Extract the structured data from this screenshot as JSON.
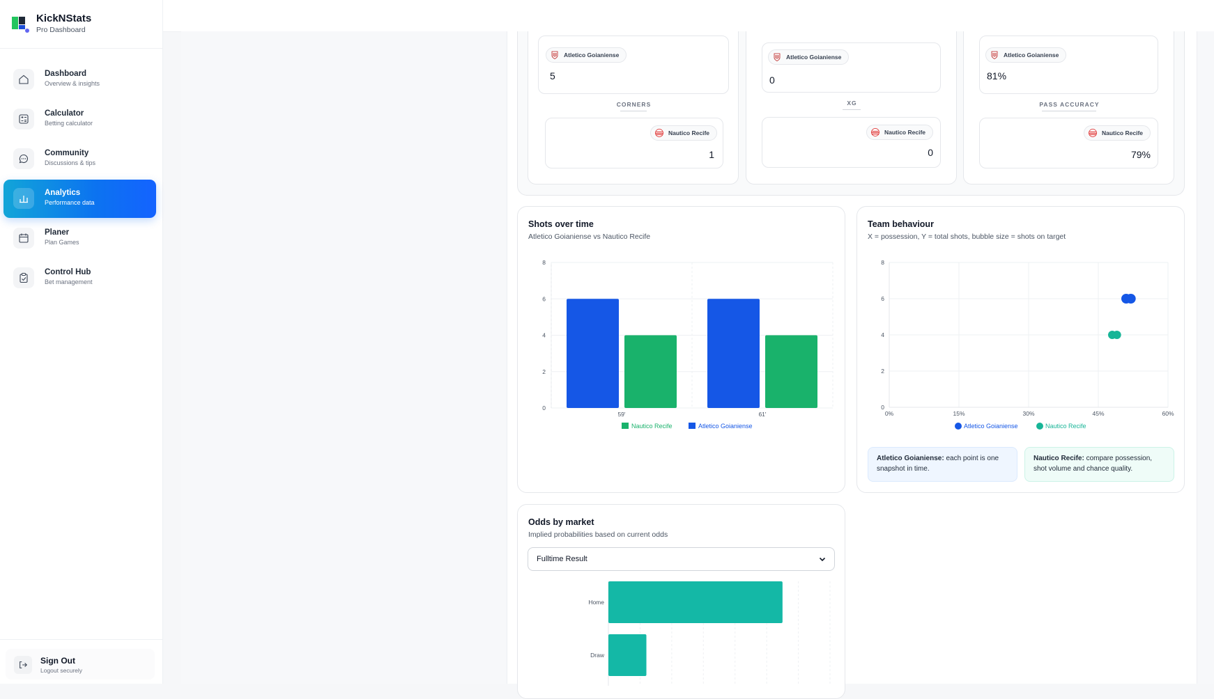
{
  "brand": {
    "title": "KickNStats",
    "subtitle": "Pro Dashboard"
  },
  "nav": [
    {
      "label": "Dashboard",
      "sub": "Overview & insights",
      "icon": "home-icon",
      "active": false
    },
    {
      "label": "Calculator",
      "sub": "Betting calculator",
      "icon": "calculator-icon",
      "active": false
    },
    {
      "label": "Community",
      "sub": "Discussions & tips",
      "icon": "chat-icon",
      "active": false
    },
    {
      "label": "Analytics",
      "sub": "Performance data",
      "icon": "bar-chart-icon",
      "active": true
    },
    {
      "label": "Planer",
      "sub": "Plan Games",
      "icon": "calendar-icon",
      "active": false
    },
    {
      "label": "Control Hub",
      "sub": "Bet management",
      "icon": "clipboard-icon",
      "active": false
    }
  ],
  "signout": {
    "label": "Sign Out",
    "sub": "Logout securely"
  },
  "teams": {
    "home": "Atletico Goianiense",
    "away": "Nautico Recife",
    "home_color": "#1d4ed8",
    "away_color": "#16a34a"
  },
  "stats": [
    {
      "metric": "CORNERS",
      "home_value": "5",
      "away_value": "1"
    },
    {
      "metric": "XG",
      "home_value": "0",
      "away_value": "0"
    },
    {
      "metric": "PASS ACCURACY",
      "home_value": "81%",
      "away_value": "79%"
    }
  ],
  "shots_card": {
    "title": "Shots over time",
    "subtitle": "Atletico Goianiense vs Nautico Recife"
  },
  "behaviour_card": {
    "title": "Team behaviour",
    "subtitle": "X = possession, Y = total shots, bubble size = shots on target",
    "note_home_bold": "Atletico Goianiense:",
    "note_home_text": " each point is one snapshot in time.",
    "note_away_bold": "Nautico Recife:",
    "note_away_text": " compare possession, shot volume and chance quality."
  },
  "odds_card": {
    "title": "Odds by market",
    "subtitle": "Implied probabilities based on current odds",
    "selected_market": "Fulltime Result"
  },
  "chart_data": [
    {
      "type": "bar",
      "categories": [
        "59'",
        "61'"
      ],
      "series": [
        {
          "name": "Atletico Goianiense",
          "values": [
            6,
            6
          ],
          "color": "#1557e6"
        },
        {
          "name": "Nautico Recife",
          "values": [
            4,
            4
          ],
          "color": "#19b26b"
        }
      ],
      "ylim": [
        0,
        8
      ],
      "yticks": [
        0,
        2,
        4,
        6,
        8
      ],
      "legend": [
        "Nautico Recife",
        "Atletico Goianiense"
      ],
      "legend_position": "bottom",
      "grid": true
    },
    {
      "type": "scatter",
      "series": [
        {
          "name": "Atletico Goianiense",
          "points": [
            [
              51,
              6
            ],
            [
              52,
              6
            ]
          ],
          "color": "#1557e6"
        },
        {
          "name": "Nautico Recife",
          "points": [
            [
              48,
              4
            ],
            [
              49,
              4
            ]
          ],
          "color": "#17b597"
        }
      ],
      "xlim": [
        0,
        60
      ],
      "ylim": [
        0,
        8
      ],
      "xticks": [
        "0%",
        "15%",
        "30%",
        "45%",
        "60%"
      ],
      "yticks": [
        0,
        2,
        4,
        6,
        8
      ],
      "legend_position": "bottom",
      "grid": true
    },
    {
      "type": "bar",
      "orientation": "horizontal",
      "categories": [
        "Home",
        "Draw"
      ],
      "values": [
        55,
        12
      ],
      "xlim": [
        0,
        70
      ],
      "color": "#14b8a6",
      "grid": true
    }
  ]
}
